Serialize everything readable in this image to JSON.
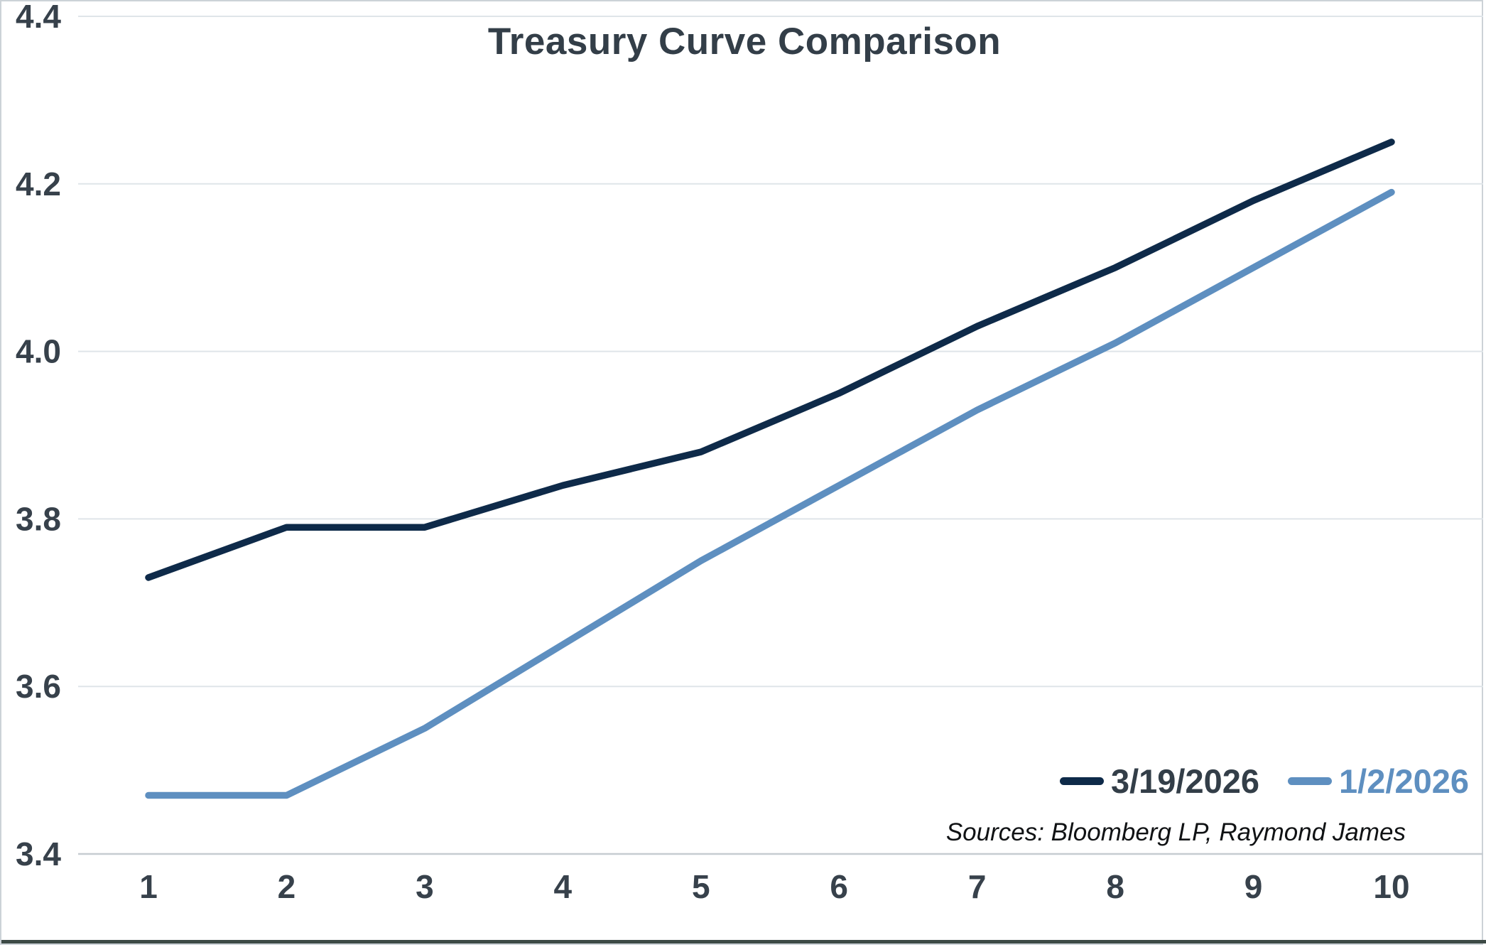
{
  "title": "Treasury Curve Comparison",
  "source_note": "Sources: Bloomberg LP, Raymond James",
  "legend": [
    {
      "label": "3/19/2026",
      "color": "#0e2a49"
    },
    {
      "label": "1/2/2026",
      "color": "#5e8fc0"
    }
  ],
  "colors": {
    "series_dark_navy": "#0e2a49",
    "series_light_blue": "#5e8fc0",
    "title_text": "#333e48",
    "tick_text": "#37414b",
    "gridline": "#dfe5e9",
    "axis_line": "#c6ccd1",
    "frame_border": "#ccd2d7"
  },
  "chart_data": {
    "type": "line",
    "x": [
      1,
      2,
      3,
      4,
      5,
      6,
      7,
      8,
      9,
      10
    ],
    "x_tick_labels": [
      "1",
      "2",
      "3",
      "4",
      "5",
      "6",
      "7",
      "8",
      "9",
      "10"
    ],
    "y_tick_labels": [
      "4.4",
      "4.2",
      "4.0",
      "3.8",
      "3.6",
      "3.4"
    ],
    "ylim": [
      3.4,
      4.4
    ],
    "grid": "horizontal",
    "legend_position": "inside-bottom-right",
    "title": "Treasury Curve Comparison",
    "xlabel": "",
    "ylabel": "",
    "series": [
      {
        "name": "3/19/2026",
        "color": "#0e2a49",
        "values": [
          3.73,
          3.79,
          3.79,
          3.84,
          3.88,
          3.95,
          4.03,
          4.1,
          4.18,
          4.25
        ]
      },
      {
        "name": "1/2/2026",
        "color": "#5e8fc0",
        "values": [
          3.47,
          3.47,
          3.55,
          3.65,
          3.75,
          3.84,
          3.93,
          4.01,
          4.1,
          4.19
        ]
      }
    ]
  }
}
